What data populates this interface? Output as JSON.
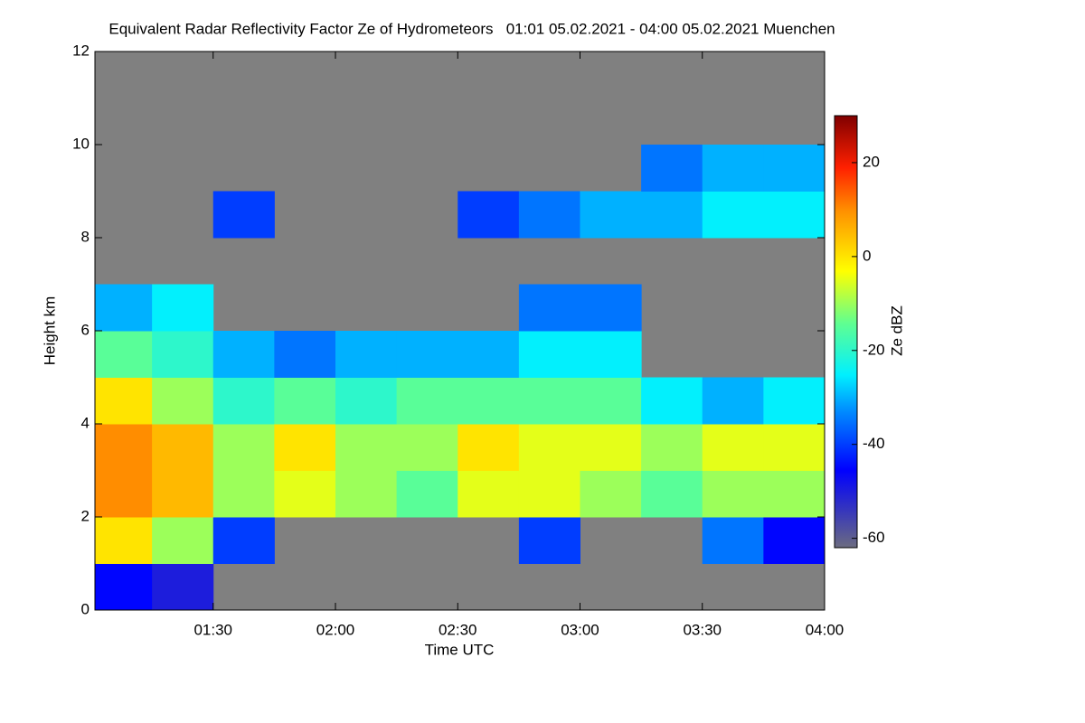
{
  "chart_data": {
    "type": "heatmap",
    "title": "Equivalent Radar Reflectivity Factor Ze of Hydrometeors   01:01 05.02.2021 - 04:00 05.02.2021 Muenchen",
    "x_label": "Time UTC",
    "y_label": "Height km",
    "colorbar_label": "Ze dBZ",
    "colormap": "jet",
    "background": "#808080",
    "xlim": [
      61,
      240
    ],
    "xticks": [
      {
        "value": 90,
        "label": "01:30"
      },
      {
        "value": 120,
        "label": "02:00"
      },
      {
        "value": 150,
        "label": "02:30"
      },
      {
        "value": 180,
        "label": "03:00"
      },
      {
        "value": 210,
        "label": "03:30"
      },
      {
        "value": 240,
        "label": "04:00"
      }
    ],
    "ylim": [
      0,
      12
    ],
    "yticks": [
      0,
      2,
      4,
      6,
      8,
      10,
      12
    ],
    "clim": [
      -62,
      30
    ],
    "cticks": [
      -60,
      -40,
      -20,
      0,
      20
    ],
    "x_bins": [
      61,
      75,
      90,
      105,
      120,
      135,
      150,
      165,
      180,
      195,
      210,
      225,
      240
    ],
    "y_bins": [
      0,
      1,
      2,
      3,
      4,
      5,
      6,
      7,
      8,
      9,
      10,
      11,
      12
    ],
    "z": [
      [
        -45,
        -50,
        null,
        null,
        null,
        null,
        null,
        null,
        null,
        null,
        null,
        null
      ],
      [
        0,
        -10,
        -40,
        null,
        null,
        null,
        null,
        -40,
        null,
        null,
        -35,
        -45
      ],
      [
        10,
        5,
        -10,
        -5,
        -10,
        -15,
        -5,
        -5,
        -10,
        -15,
        -10,
        -10
      ],
      [
        10,
        5,
        -10,
        0,
        -10,
        -10,
        0,
        -5,
        -5,
        -10,
        -5,
        -5
      ],
      [
        0,
        -10,
        -20,
        -15,
        -20,
        -15,
        -15,
        -15,
        -15,
        -25,
        -30,
        -25
      ],
      [
        -15,
        -20,
        -30,
        -35,
        -30,
        -30,
        -30,
        -25,
        -25,
        null,
        null,
        null
      ],
      [
        -30,
        -25,
        null,
        null,
        null,
        null,
        null,
        -35,
        -35,
        null,
        null,
        null
      ],
      [
        null,
        null,
        null,
        null,
        null,
        null,
        null,
        null,
        null,
        null,
        null,
        null
      ],
      [
        null,
        null,
        -40,
        null,
        null,
        null,
        -40,
        -35,
        -30,
        -30,
        -25,
        -25
      ],
      [
        null,
        null,
        null,
        null,
        null,
        null,
        null,
        null,
        null,
        -35,
        -30,
        -30
      ],
      [
        null,
        null,
        null,
        null,
        null,
        null,
        null,
        null,
        null,
        null,
        null,
        null
      ],
      [
        null,
        null,
        null,
        null,
        null,
        null,
        null,
        null,
        null,
        null,
        null,
        null
      ]
    ]
  }
}
